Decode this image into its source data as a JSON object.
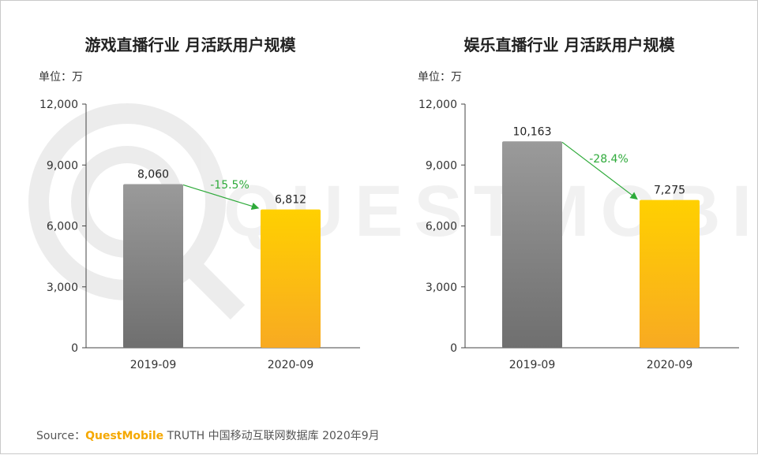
{
  "charts": [
    {
      "title": "游戏直播行业 月活跃用户规模",
      "unit": "单位：万"
    },
    {
      "title": "娱乐直播行业 月活跃用户规模",
      "unit": "单位：万"
    }
  ],
  "source": {
    "prefix": "Source：",
    "brand": "QuestMobile",
    "rest": " TRUTH 中国移动互联网数据库 2020年9月"
  },
  "watermark": "QUESTMOBILE",
  "colors": {
    "bar_2019_top": "#9a9a9a",
    "bar_2019_bottom": "#6f6f6f",
    "bar_2020_top": "#ffd000",
    "bar_2020_bottom": "#f8aa22",
    "change_text": "#2eaa3a",
    "arrow": "#2eaa3a"
  },
  "chart_data": [
    {
      "type": "bar",
      "title": "游戏直播行业 月活跃用户规模",
      "categories": [
        "2019-09",
        "2020-09"
      ],
      "values": [
        8060,
        6812
      ],
      "value_labels": [
        "8,060",
        "6,812"
      ],
      "change_label": "-15.5%",
      "ylim": [
        0,
        12000
      ],
      "yticks": [
        "0",
        "3,000",
        "6,000",
        "9,000",
        "12,000"
      ],
      "ytick_values": [
        0,
        3000,
        6000,
        9000,
        12000
      ],
      "ylabel": "单位：万",
      "grid": false,
      "legend": "none"
    },
    {
      "type": "bar",
      "title": "娱乐直播行业 月活跃用户规模",
      "categories": [
        "2019-09",
        "2020-09"
      ],
      "values": [
        10163,
        7275
      ],
      "value_labels": [
        "10,163",
        "7,275"
      ],
      "change_label": "-28.4%",
      "ylim": [
        0,
        12000
      ],
      "yticks": [
        "0",
        "3,000",
        "6,000",
        "9,000",
        "12,000"
      ],
      "ytick_values": [
        0,
        3000,
        6000,
        9000,
        12000
      ],
      "ylabel": "单位：万",
      "grid": false,
      "legend": "none"
    }
  ]
}
